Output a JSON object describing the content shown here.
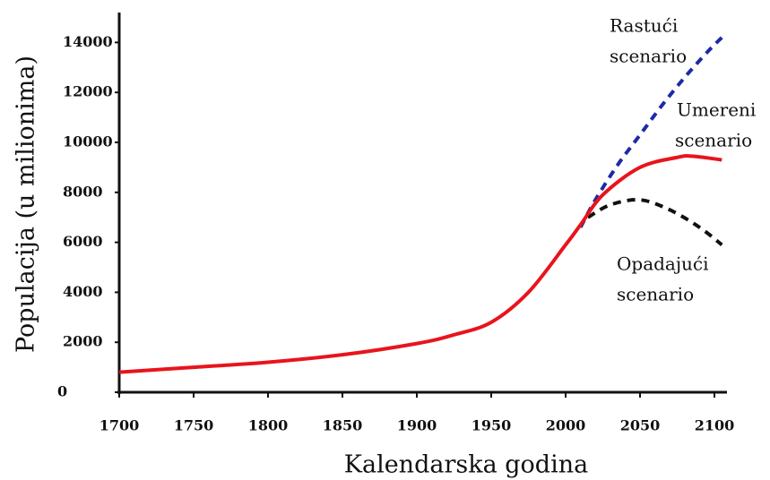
{
  "chart_data": {
    "type": "line",
    "xlabel": "Kalendarska godina",
    "ylabel": "Populacija (u milionima)",
    "xlim": [
      1700,
      2110
    ],
    "ylim": [
      0,
      15000
    ],
    "xticks": [
      1700,
      1750,
      1800,
      1850,
      1900,
      1950,
      2000,
      2050,
      2100
    ],
    "yticks": [
      0,
      2000,
      4000,
      6000,
      8000,
      10000,
      12000,
      14000
    ],
    "series": [
      {
        "name": "Rastući scenario",
        "color": "#1c2aa8",
        "dash": true,
        "x": [
          2010,
          2020,
          2035,
          2050,
          2065,
          2080,
          2095,
          2105
        ],
        "values": [
          6600,
          7700,
          9100,
          10300,
          11500,
          12600,
          13600,
          14200
        ]
      },
      {
        "name": "Opadajući scenario",
        "color": "#111111",
        "dash": true,
        "x": [
          2015,
          2030,
          2050,
          2070,
          2090,
          2105
        ],
        "values": [
          7000,
          7500,
          7700,
          7300,
          6600,
          5900
        ]
      },
      {
        "name": "Umereni scenario",
        "color": "#e8141c",
        "dash": false,
        "x": [
          1700,
          1750,
          1800,
          1850,
          1900,
          1925,
          1950,
          1975,
          2000,
          2010,
          2025,
          2050,
          2075,
          2085,
          2105
        ],
        "values": [
          800,
          1000,
          1200,
          1500,
          1950,
          2300,
          2800,
          4000,
          5900,
          6700,
          7900,
          9000,
          9400,
          9450,
          9300
        ]
      }
    ],
    "annotations": [
      {
        "lines": [
          "Rastući",
          "scenario"
        ]
      },
      {
        "lines": [
          "Umereni",
          "scenario"
        ]
      },
      {
        "lines": [
          "Opadajući",
          "scenario"
        ]
      }
    ]
  }
}
